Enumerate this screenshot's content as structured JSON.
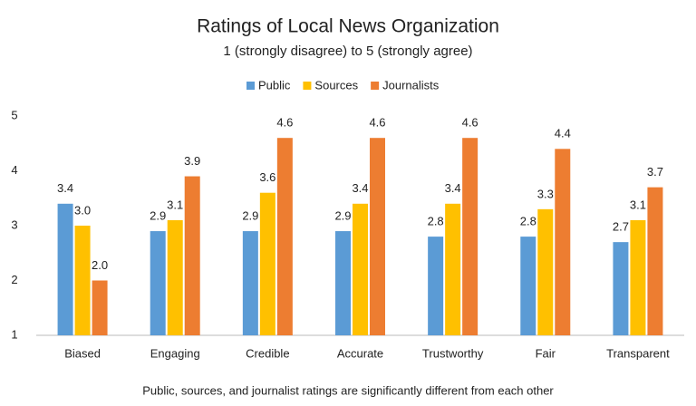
{
  "chart_data": {
    "type": "bar",
    "title": "Ratings of Local News Organization",
    "subtitle": "1 (strongly disagree) to 5 (strongly agree)",
    "categories": [
      "Biased",
      "Engaging",
      "Credible",
      "Accurate",
      "Trustworthy",
      "Fair",
      "Transparent"
    ],
    "series": [
      {
        "name": "Public",
        "color": "#5b9bd5",
        "values": [
          3.4,
          2.9,
          2.9,
          2.9,
          2.8,
          2.8,
          2.7
        ],
        "value_labels": [
          "3.4",
          "2.9",
          "2.9",
          "2.9",
          "2.8",
          "2.8",
          "2.7"
        ]
      },
      {
        "name": "Sources",
        "color": "#ffc000",
        "values": [
          3,
          3.1,
          3.6,
          3.4,
          3.4,
          3.3,
          3.1
        ],
        "value_labels": [
          "3.0",
          "3.1",
          "3.6",
          "3.4",
          "3.4",
          "3.3",
          "3.1"
        ]
      },
      {
        "name": "Journalists",
        "color": "#ed7d31",
        "values": [
          2,
          3.9,
          4.6,
          4.6,
          4.6,
          4.4,
          3.7
        ],
        "value_labels": [
          "2.0",
          "3.9",
          "4.6",
          "4.6",
          "4.6",
          "4.4",
          "3.7"
        ]
      }
    ],
    "ylim": [
      1,
      5
    ],
    "yticks": [
      1,
      2,
      3,
      4,
      5
    ],
    "grid": false,
    "legend": "top",
    "note": "Public, sources, and journalist ratings are significantly different from each other"
  }
}
